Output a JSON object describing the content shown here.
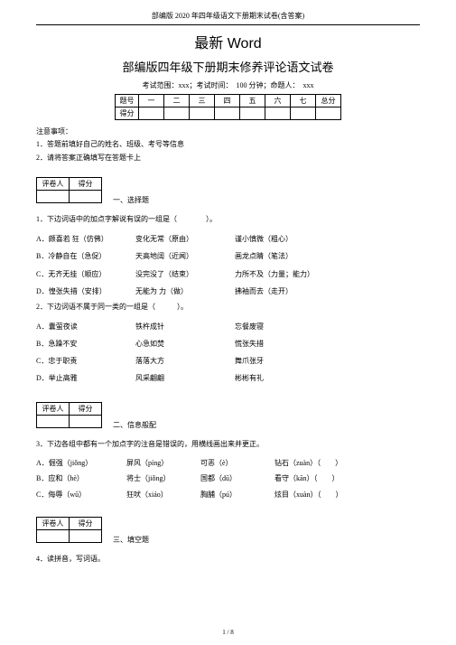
{
  "header": "部编版 2020 年四年级语文下册期末试卷(含答案)",
  "title_main": "最新 Word",
  "title_sub": "部编版四年级下册期末修养评论语文试卷",
  "exam_info": "考试范围：xxx；考试时间：　100 分钟；命题人：　xxx",
  "score_table": {
    "row1": [
      "题号",
      "一",
      "二",
      "三",
      "四",
      "五",
      "六",
      "七",
      "总分"
    ],
    "row2_label": "得分"
  },
  "notice": {
    "title": "注意事项：",
    "l1": "1．答题前填好自己的姓名、班级、考号等信息",
    "l2": "2．请将答案正确填写在答题卡上"
  },
  "grader": {
    "c1": "评卷人",
    "c2": "得分"
  },
  "sec1": "一、选择题",
  "q1": "1．下边词语中的加点字解说有误的一组是（　　　　）。",
  "q1_opts": [
    {
      "a": "A．颇喜若 狂（仿佛）",
      "b": "变化无常（原由）",
      "c": "谨小慎微（粗心）"
    },
    {
      "a": "B．冷静自在（急促）",
      "b": "天高地阔（近闻）",
      "c": "画龙点睛（笔法）"
    },
    {
      "a": "C．无齐无挂（顺应）",
      "b": "没完没了（结束）",
      "c": "力所不及（力量；能力）"
    },
    {
      "a": "D．惶张失措（安排）",
      "b": "无能为 力（做）",
      "c": "拂袖而去（走开）"
    }
  ],
  "q2": "2．下边词语不属于同一类的一组是（　　　）。",
  "q2_opts": [
    {
      "a": "A．囊萤夜读",
      "b": "铁杵成针",
      "c": "忘餐废寝"
    },
    {
      "a": "B．急躁不安",
      "b": "心急如焚",
      "c": "慌张失措"
    },
    {
      "a": "C．忠于职责",
      "b": "落落大方",
      "c": "舞爪张牙"
    },
    {
      "a": "D．举止高雅",
      "b": "风采翩翩",
      "c": "彬彬有礼"
    }
  ],
  "sec2": "二、信息般配",
  "q3": "3．下边各组中都有一个加点字的注音是错误的，用横线画出来并更正。",
  "q3_rows": [
    {
      "a": "A．倔强（jiǒng）",
      "b": "屏风（píng）",
      "c": "可恶（è）",
      "d": "钻石（zuàn）（　　）"
    },
    {
      "a": "B．应和（hè）",
      "b": "将士（jiǒng）",
      "c": "国都（dū）",
      "d": "看守（kān）（　　）"
    },
    {
      "a": "C．侮辱（wū）",
      "b": "狂吠（xiáo）",
      "c": "胸脯（pú）",
      "d": "炫目（xuàn）（　　）"
    }
  ],
  "sec3": "三、填空题",
  "q4": "4．读拼音，写词语。",
  "footer": "1 / 8"
}
